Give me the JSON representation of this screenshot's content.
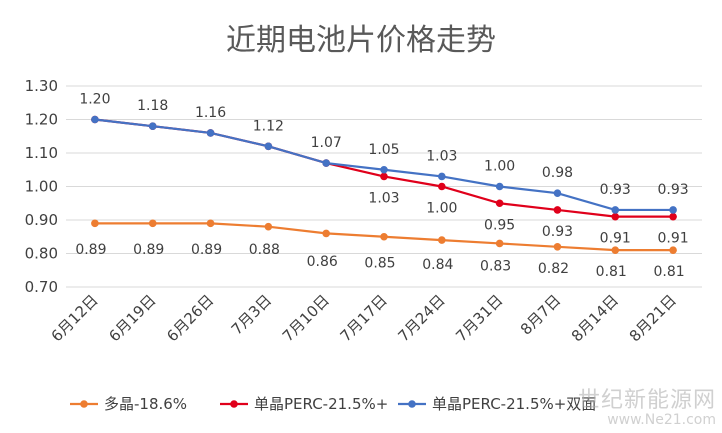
{
  "chart_data": {
    "type": "line",
    "title": "近期电池片价格走势",
    "categories": [
      "6月12日",
      "6月19日",
      "6月26日",
      "7月3日",
      "7月10日",
      "7月17日",
      "7月24日",
      "7月31日",
      "8月7日",
      "8月14日",
      "8月21日"
    ],
    "ylim": [
      0.7,
      1.3
    ],
    "yticks": [
      "0.70",
      "0.80",
      "0.90",
      "1.00",
      "1.10",
      "1.20",
      "1.30"
    ],
    "grid": true,
    "legend_position": "bottom",
    "series": [
      {
        "name": "多晶-18.6%",
        "color": "#ed7d31",
        "values": [
          0.89,
          0.89,
          0.89,
          0.88,
          0.86,
          0.85,
          0.84,
          0.83,
          0.82,
          0.81,
          0.81
        ],
        "labels": [
          "0.89",
          "0.89",
          "0.89",
          "0.88",
          "0.86",
          "0.85",
          "0.84",
          "0.83",
          "0.82",
          "0.81",
          "0.81"
        ]
      },
      {
        "name": "单晶PERC-21.5%+",
        "color": "#e0001b",
        "values": [
          1.2,
          1.18,
          1.16,
          1.12,
          1.07,
          1.03,
          1.0,
          0.95,
          0.93,
          0.91,
          0.91
        ],
        "labels": [
          "",
          "",
          "",
          "",
          "",
          "1.03",
          "1.00",
          "0.95",
          "0.93",
          "0.91",
          "0.91"
        ]
      },
      {
        "name": "单晶PERC-21.5%+双面",
        "color": "#4472c4",
        "values": [
          1.2,
          1.18,
          1.16,
          1.12,
          1.07,
          1.05,
          1.03,
          1.0,
          0.98,
          0.93,
          0.93
        ],
        "labels": [
          "1.20",
          "1.18",
          "1.16",
          "1.12",
          "1.07",
          "1.05",
          "1.03",
          "1.00",
          "0.98",
          "0.93",
          "0.93"
        ]
      }
    ]
  },
  "watermark": {
    "text": "世纪新能源网",
    "url": "www.Ne21.com"
  }
}
